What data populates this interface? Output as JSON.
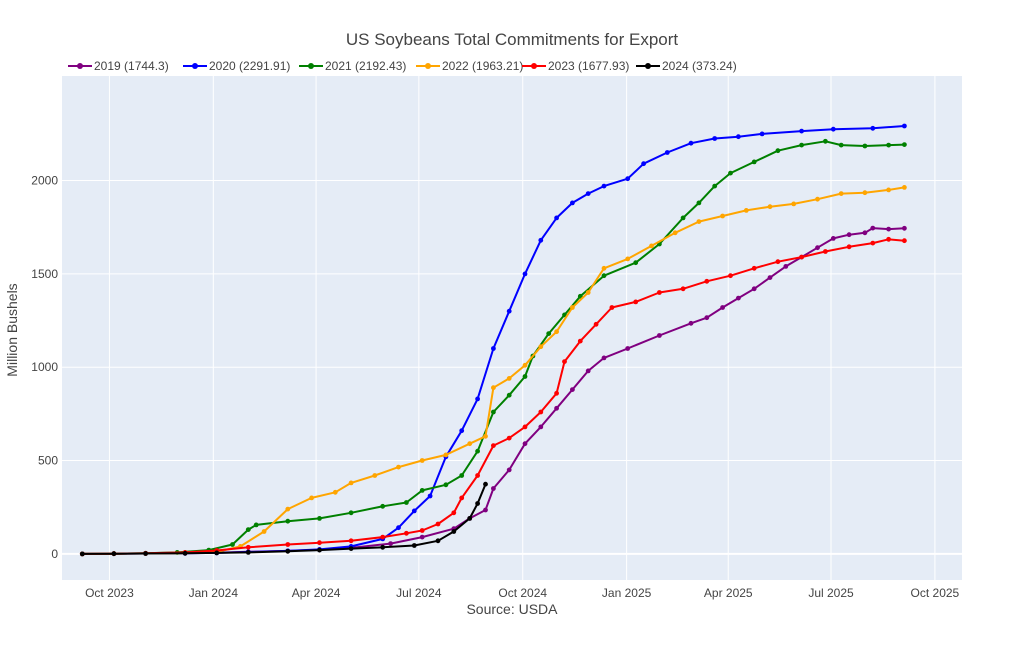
{
  "chart_data": {
    "type": "line",
    "title": "US Soybeans Total Commitments for Export",
    "xlabel": "Source: USDA",
    "ylabel": "Million Bushels",
    "x_axis": {
      "range": [
        "2023-08-20",
        "2025-10-25"
      ],
      "ticks": [
        {
          "date": "2023-10-01",
          "label": "Oct 2023"
        },
        {
          "date": "2024-01-01",
          "label": "Jan 2024"
        },
        {
          "date": "2024-04-01",
          "label": "Apr 2024"
        },
        {
          "date": "2024-07-01",
          "label": "Jul 2024"
        },
        {
          "date": "2024-10-01",
          "label": "Oct 2024"
        },
        {
          "date": "2025-01-01",
          "label": "Jan 2025"
        },
        {
          "date": "2025-04-01",
          "label": "Apr 2025"
        },
        {
          "date": "2025-07-01",
          "label": "Jul 2025"
        },
        {
          "date": "2025-10-01",
          "label": "Oct 2025"
        }
      ]
    },
    "y_axis": {
      "range": [
        -140,
        2560
      ],
      "ticks": [
        0,
        500,
        1000,
        1500,
        2000
      ]
    },
    "grid": true,
    "legend_position": "top",
    "background_color": "#e5ecf6",
    "series": [
      {
        "name": "2019 (1744.3)",
        "color": "#800080",
        "points": [
          [
            "2023-09-07",
            0
          ],
          [
            "2023-10-05",
            1
          ],
          [
            "2023-11-02",
            2
          ],
          [
            "2023-12-07",
            3
          ],
          [
            "2024-01-04",
            6
          ],
          [
            "2024-02-01",
            11
          ],
          [
            "2024-03-07",
            16
          ],
          [
            "2024-04-04",
            22
          ],
          [
            "2024-05-02",
            32
          ],
          [
            "2024-06-06",
            55
          ],
          [
            "2024-07-04",
            90
          ],
          [
            "2024-08-01",
            135
          ],
          [
            "2024-08-15",
            190
          ],
          [
            "2024-08-29",
            235
          ],
          [
            "2024-09-05",
            350
          ],
          [
            "2024-09-19",
            450
          ],
          [
            "2024-10-03",
            590
          ],
          [
            "2024-10-17",
            680
          ],
          [
            "2024-10-31",
            780
          ],
          [
            "2024-11-14",
            880
          ],
          [
            "2024-11-28",
            980
          ],
          [
            "2024-12-12",
            1050
          ],
          [
            "2025-01-02",
            1100
          ],
          [
            "2025-01-30",
            1170
          ],
          [
            "2025-02-27",
            1235
          ],
          [
            "2025-03-13",
            1265
          ],
          [
            "2025-03-27",
            1320
          ],
          [
            "2025-04-10",
            1370
          ],
          [
            "2025-04-24",
            1420
          ],
          [
            "2025-05-08",
            1480
          ],
          [
            "2025-05-22",
            1540
          ],
          [
            "2025-06-05",
            1590
          ],
          [
            "2025-06-19",
            1640
          ],
          [
            "2025-07-03",
            1690
          ],
          [
            "2025-07-17",
            1710
          ],
          [
            "2025-07-31",
            1720
          ],
          [
            "2025-08-07",
            1745
          ],
          [
            "2025-08-21",
            1740
          ],
          [
            "2025-09-04",
            1744.3
          ]
        ]
      },
      {
        "name": "2020 (2291.91)",
        "color": "#0000ff",
        "points": [
          [
            "2023-09-07",
            0
          ],
          [
            "2023-10-05",
            1
          ],
          [
            "2023-11-02",
            2
          ],
          [
            "2023-12-07",
            3
          ],
          [
            "2024-01-04",
            5
          ],
          [
            "2024-02-01",
            10
          ],
          [
            "2024-03-07",
            16
          ],
          [
            "2024-04-04",
            24
          ],
          [
            "2024-05-02",
            40
          ],
          [
            "2024-05-30",
            80
          ],
          [
            "2024-06-13",
            140
          ],
          [
            "2024-06-27",
            230
          ],
          [
            "2024-07-11",
            310
          ],
          [
            "2024-07-25",
            520
          ],
          [
            "2024-08-08",
            660
          ],
          [
            "2024-08-22",
            830
          ],
          [
            "2024-09-05",
            1100
          ],
          [
            "2024-09-19",
            1300
          ],
          [
            "2024-10-03",
            1500
          ],
          [
            "2024-10-17",
            1680
          ],
          [
            "2024-10-31",
            1800
          ],
          [
            "2024-11-14",
            1880
          ],
          [
            "2024-11-28",
            1930
          ],
          [
            "2024-12-12",
            1970
          ],
          [
            "2025-01-02",
            2010
          ],
          [
            "2025-01-16",
            2090
          ],
          [
            "2025-02-06",
            2150
          ],
          [
            "2025-02-27",
            2200
          ],
          [
            "2025-03-20",
            2225
          ],
          [
            "2025-04-10",
            2235
          ],
          [
            "2025-05-01",
            2250
          ],
          [
            "2025-06-05",
            2265
          ],
          [
            "2025-07-03",
            2275
          ],
          [
            "2025-08-07",
            2280
          ],
          [
            "2025-09-04",
            2291.91
          ]
        ]
      },
      {
        "name": "2021 (2192.43)",
        "color": "#008000",
        "points": [
          [
            "2023-09-07",
            0
          ],
          [
            "2023-10-05",
            1
          ],
          [
            "2023-11-02",
            3
          ],
          [
            "2023-11-30",
            8
          ],
          [
            "2023-12-28",
            20
          ],
          [
            "2024-01-18",
            50
          ],
          [
            "2024-02-01",
            130
          ],
          [
            "2024-02-08",
            155
          ],
          [
            "2024-03-07",
            175
          ],
          [
            "2024-04-04",
            190
          ],
          [
            "2024-05-02",
            220
          ],
          [
            "2024-05-30",
            255
          ],
          [
            "2024-06-20",
            275
          ],
          [
            "2024-07-04",
            340
          ],
          [
            "2024-07-25",
            370
          ],
          [
            "2024-08-08",
            420
          ],
          [
            "2024-08-22",
            550
          ],
          [
            "2024-09-05",
            760
          ],
          [
            "2024-09-19",
            850
          ],
          [
            "2024-10-03",
            950
          ],
          [
            "2024-10-10",
            1060
          ],
          [
            "2024-10-24",
            1180
          ],
          [
            "2024-11-07",
            1280
          ],
          [
            "2024-11-21",
            1380
          ],
          [
            "2024-12-12",
            1490
          ],
          [
            "2025-01-09",
            1560
          ],
          [
            "2025-01-30",
            1660
          ],
          [
            "2025-02-20",
            1800
          ],
          [
            "2025-03-06",
            1880
          ],
          [
            "2025-03-20",
            1970
          ],
          [
            "2025-04-03",
            2040
          ],
          [
            "2025-04-24",
            2100
          ],
          [
            "2025-05-15",
            2160
          ],
          [
            "2025-06-05",
            2190
          ],
          [
            "2025-06-26",
            2210
          ],
          [
            "2025-07-10",
            2190
          ],
          [
            "2025-07-31",
            2185
          ],
          [
            "2025-08-21",
            2190
          ],
          [
            "2025-09-04",
            2192.43
          ]
        ]
      },
      {
        "name": "2022 (1963.21)",
        "color": "#ffa500",
        "points": [
          [
            "2023-09-07",
            0
          ],
          [
            "2023-10-05",
            1
          ],
          [
            "2023-11-02",
            2
          ],
          [
            "2023-12-07",
            4
          ],
          [
            "2024-01-04",
            10
          ],
          [
            "2024-01-25",
            40
          ],
          [
            "2024-02-15",
            120
          ],
          [
            "2024-03-07",
            240
          ],
          [
            "2024-03-28",
            300
          ],
          [
            "2024-04-18",
            330
          ],
          [
            "2024-05-02",
            380
          ],
          [
            "2024-05-23",
            420
          ],
          [
            "2024-06-13",
            465
          ],
          [
            "2024-07-04",
            500
          ],
          [
            "2024-07-25",
            530
          ],
          [
            "2024-08-15",
            590
          ],
          [
            "2024-08-29",
            630
          ],
          [
            "2024-09-05",
            890
          ],
          [
            "2024-09-19",
            940
          ],
          [
            "2024-10-03",
            1010
          ],
          [
            "2024-10-17",
            1110
          ],
          [
            "2024-10-31",
            1190
          ],
          [
            "2024-11-14",
            1320
          ],
          [
            "2024-11-28",
            1400
          ],
          [
            "2024-12-12",
            1530
          ],
          [
            "2025-01-02",
            1580
          ],
          [
            "2025-01-23",
            1650
          ],
          [
            "2025-02-13",
            1720
          ],
          [
            "2025-03-06",
            1780
          ],
          [
            "2025-03-27",
            1810
          ],
          [
            "2025-04-17",
            1840
          ],
          [
            "2025-05-08",
            1860
          ],
          [
            "2025-05-29",
            1875
          ],
          [
            "2025-06-19",
            1900
          ],
          [
            "2025-07-10",
            1930
          ],
          [
            "2025-07-31",
            1935
          ],
          [
            "2025-08-21",
            1950
          ],
          [
            "2025-09-04",
            1963.21
          ]
        ]
      },
      {
        "name": "2023 (1677.93)",
        "color": "#ff0000",
        "points": [
          [
            "2023-09-07",
            0
          ],
          [
            "2023-10-05",
            1
          ],
          [
            "2023-11-02",
            3
          ],
          [
            "2023-12-07",
            8
          ],
          [
            "2024-01-04",
            18
          ],
          [
            "2024-02-01",
            35
          ],
          [
            "2024-03-07",
            50
          ],
          [
            "2024-04-04",
            60
          ],
          [
            "2024-05-02",
            70
          ],
          [
            "2024-05-30",
            90
          ],
          [
            "2024-06-20",
            110
          ],
          [
            "2024-07-04",
            125
          ],
          [
            "2024-07-18",
            160
          ],
          [
            "2024-08-01",
            220
          ],
          [
            "2024-08-08",
            300
          ],
          [
            "2024-08-22",
            420
          ],
          [
            "2024-09-05",
            580
          ],
          [
            "2024-09-19",
            620
          ],
          [
            "2024-10-03",
            680
          ],
          [
            "2024-10-17",
            760
          ],
          [
            "2024-10-31",
            860
          ],
          [
            "2024-11-07",
            1030
          ],
          [
            "2024-11-21",
            1140
          ],
          [
            "2024-12-05",
            1230
          ],
          [
            "2024-12-19",
            1320
          ],
          [
            "2025-01-09",
            1350
          ],
          [
            "2025-01-30",
            1400
          ],
          [
            "2025-02-20",
            1420
          ],
          [
            "2025-03-13",
            1460
          ],
          [
            "2025-04-03",
            1490
          ],
          [
            "2025-04-24",
            1530
          ],
          [
            "2025-05-15",
            1565
          ],
          [
            "2025-06-05",
            1590
          ],
          [
            "2025-06-26",
            1620
          ],
          [
            "2025-07-17",
            1645
          ],
          [
            "2025-08-07",
            1665
          ],
          [
            "2025-08-21",
            1685
          ],
          [
            "2025-09-04",
            1677.93
          ]
        ]
      },
      {
        "name": "2024 (373.24)",
        "color": "#000000",
        "points": [
          [
            "2023-09-07",
            0
          ],
          [
            "2023-10-05",
            1
          ],
          [
            "2023-11-02",
            2
          ],
          [
            "2023-12-07",
            3
          ],
          [
            "2024-01-04",
            5
          ],
          [
            "2024-02-01",
            8
          ],
          [
            "2024-03-07",
            14
          ],
          [
            "2024-04-04",
            20
          ],
          [
            "2024-05-02",
            28
          ],
          [
            "2024-05-30",
            35
          ],
          [
            "2024-06-27",
            45
          ],
          [
            "2024-07-18",
            70
          ],
          [
            "2024-08-01",
            120
          ],
          [
            "2024-08-15",
            190
          ],
          [
            "2024-08-22",
            270
          ],
          [
            "2024-08-29",
            373.24
          ]
        ]
      }
    ]
  }
}
